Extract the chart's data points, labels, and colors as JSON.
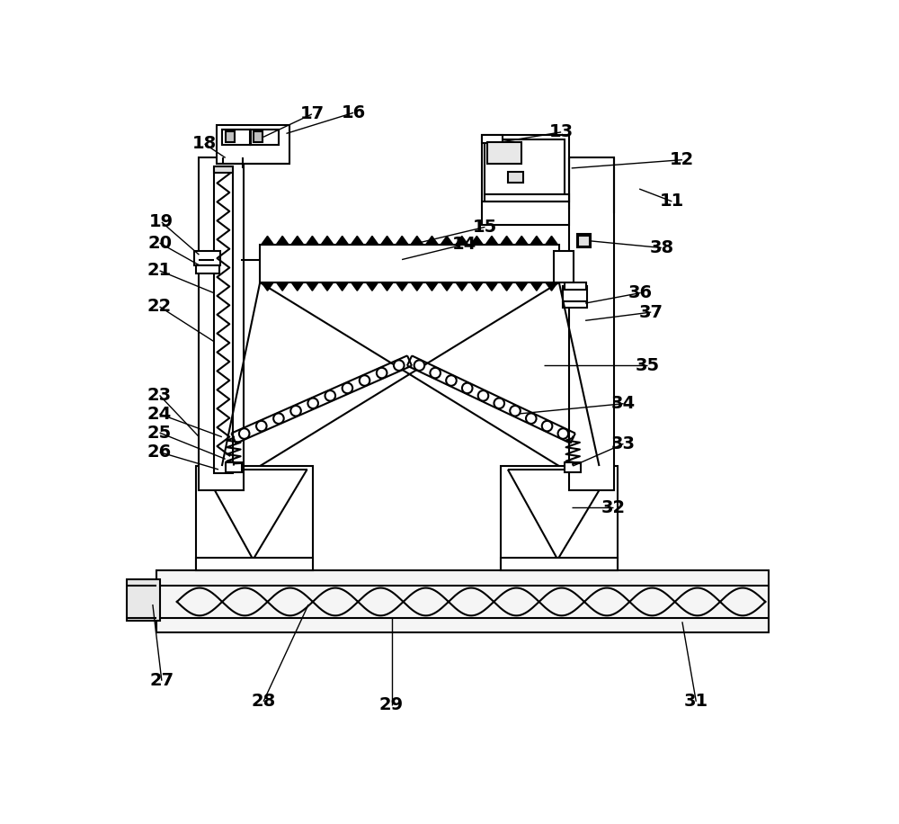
{
  "bg_color": "#ffffff",
  "line_color": "#000000",
  "lw": 1.5,
  "lw_thin": 1.0,
  "fs": 14,
  "fw": "bold"
}
